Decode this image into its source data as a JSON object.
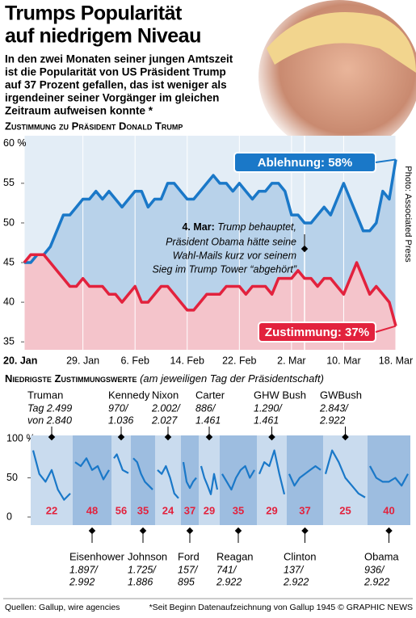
{
  "title": [
    "Trumps Popularität",
    "auf niedrigem Niveau"
  ],
  "subtitle": [
    "In den zwei Monaten seiner jungen Amtszeit",
    "ist die Popularität von US Präsident Trump",
    "auf 37 Prozent gefallen, das ist weniger als",
    "irgendeiner seiner Vorgänger im gleichen",
    "Zeitraum aufweisen konnte *"
  ],
  "photo_credit": "Photo: Associated Press",
  "footer": {
    "left": "Quellen: Gallup, wire agencies",
    "right": "*Seit Beginn Datenaufzeichnung von Gallup 1945 © GRAPHIC NEWS"
  },
  "chart_data": [
    {
      "type": "line",
      "title": "Zustimmung zu Präsident Donald Trump",
      "categories": [
        "20. Jan",
        null,
        null,
        null,
        null,
        null,
        null,
        null,
        null,
        "29. Jan",
        null,
        null,
        null,
        null,
        null,
        null,
        null,
        "6. Feb",
        null,
        null,
        null,
        null,
        null,
        null,
        null,
        "14. Feb",
        null,
        null,
        null,
        null,
        null,
        null,
        null,
        "22. Feb",
        null,
        null,
        null,
        null,
        null,
        null,
        null,
        "2. Mar",
        null,
        null,
        null,
        null,
        null,
        null,
        null,
        "10. Mar",
        null,
        null,
        null,
        null,
        null,
        null,
        null,
        "18. Mar"
      ],
      "series": [
        {
          "name": "Ablehnung",
          "end_label": "Ablehnung: 58%",
          "color": "#1a78c8",
          "values": [
            45,
            45,
            46,
            46,
            47,
            49,
            51,
            51,
            52,
            53,
            53,
            54,
            53,
            54,
            53,
            52,
            53,
            54,
            54,
            52,
            53,
            53,
            55,
            55,
            54,
            53,
            53,
            54,
            55,
            56,
            55,
            55,
            54,
            55,
            54,
            53,
            54,
            54,
            55,
            55,
            54,
            51,
            51,
            50,
            50,
            51,
            52,
            51,
            53,
            55,
            53,
            51,
            49,
            49,
            50,
            54,
            53,
            58
          ]
        },
        {
          "name": "Zustimmung",
          "end_label": "Zustimmung: 37%",
          "color": "#e2223d",
          "values": [
            45,
            46,
            46,
            46,
            45,
            44,
            43,
            42,
            42,
            43,
            42,
            42,
            42,
            41,
            41,
            40,
            41,
            42,
            40,
            40,
            41,
            42,
            42,
            41,
            40,
            39,
            39,
            40,
            41,
            41,
            41,
            42,
            42,
            42,
            41,
            42,
            42,
            42,
            41,
            43,
            43,
            43,
            44,
            43,
            43,
            42,
            43,
            43,
            42,
            41,
            43,
            45,
            43,
            41,
            42,
            41,
            40,
            37
          ]
        }
      ],
      "ylim": [
        34,
        61
      ],
      "yticks": [
        35,
        40,
        45,
        50,
        55,
        {
          "value": 60,
          "label": "60 %"
        }
      ],
      "grid": true,
      "annotation": {
        "index": 43,
        "date": "4. Mar:",
        "lines": [
          "Trump behauptet,",
          "Präsident Obama hätte seine",
          "Wahl-Mails kurz vor seinem",
          "Sieg im Trump Tower “abgehört”"
        ]
      }
    },
    {
      "type": "panels",
      "title": "Niedrigste Zustimmungswerte",
      "subtitle": "(am jeweiligen Tag der Präsidentschaft)",
      "ylim": [
        0,
        100
      ],
      "yticks": [
        0,
        50,
        {
          "value": 100,
          "label": "100 %"
        }
      ],
      "color": "#1a78c8",
      "min_color": "#e2223d",
      "series": [
        {
          "name": "Truman",
          "note": [
            "Tag 2.499",
            "von 2.840"
          ],
          "min": 22,
          "values": [
            85,
            55,
            45,
            60,
            35,
            22,
            30
          ]
        },
        {
          "name": "Eisenhower",
          "note": [
            "1.897/",
            "2.992"
          ],
          "min": 48,
          "values": [
            70,
            65,
            75,
            60,
            65,
            48,
            60
          ]
        },
        {
          "name": "Kennedy",
          "note": [
            "970/",
            "1.036"
          ],
          "min": 56,
          "values": [
            75,
            80,
            70,
            60,
            58,
            56
          ]
        },
        {
          "name": "Johnson",
          "note": [
            "1.725/",
            "1.886"
          ],
          "min": 35,
          "values": [
            75,
            70,
            55,
            45,
            40,
            35
          ]
        },
        {
          "name": "Nixon",
          "note": [
            "2.002/",
            "2.027"
          ],
          "min": 24,
          "values": [
            60,
            55,
            65,
            50,
            30,
            24
          ]
        },
        {
          "name": "Ford",
          "note": [
            "157/",
            "895"
          ],
          "min": 37,
          "values": [
            70,
            45,
            37,
            45,
            50
          ]
        },
        {
          "name": "Carter",
          "note": [
            "886/",
            "1.461"
          ],
          "min": 29,
          "values": [
            65,
            50,
            40,
            29,
            55,
            35
          ]
        },
        {
          "name": "Reagan",
          "note": [
            "741/",
            "2.922"
          ],
          "min": 35,
          "values": [
            55,
            45,
            35,
            50,
            60,
            65,
            50,
            60
          ]
        },
        {
          "name": "GHW Bush",
          "note": [
            "1.290/",
            "1.461"
          ],
          "min": 29,
          "values": [
            55,
            70,
            65,
            85,
            55,
            29
          ]
        },
        {
          "name": "Clinton",
          "note": [
            "137/",
            "2.922"
          ],
          "min": 37,
          "values": [
            55,
            40,
            50,
            55,
            60,
            65,
            60
          ]
        },
        {
          "name": "GWBush",
          "note": [
            "2.843/",
            "2.922"
          ],
          "min": 25,
          "values": [
            55,
            85,
            70,
            50,
            40,
            30,
            25
          ]
        },
        {
          "name": "Obama",
          "note": [
            "936/",
            "2.922"
          ],
          "min": 40,
          "values": [
            65,
            50,
            45,
            45,
            50,
            40,
            55
          ]
        }
      ]
    }
  ]
}
